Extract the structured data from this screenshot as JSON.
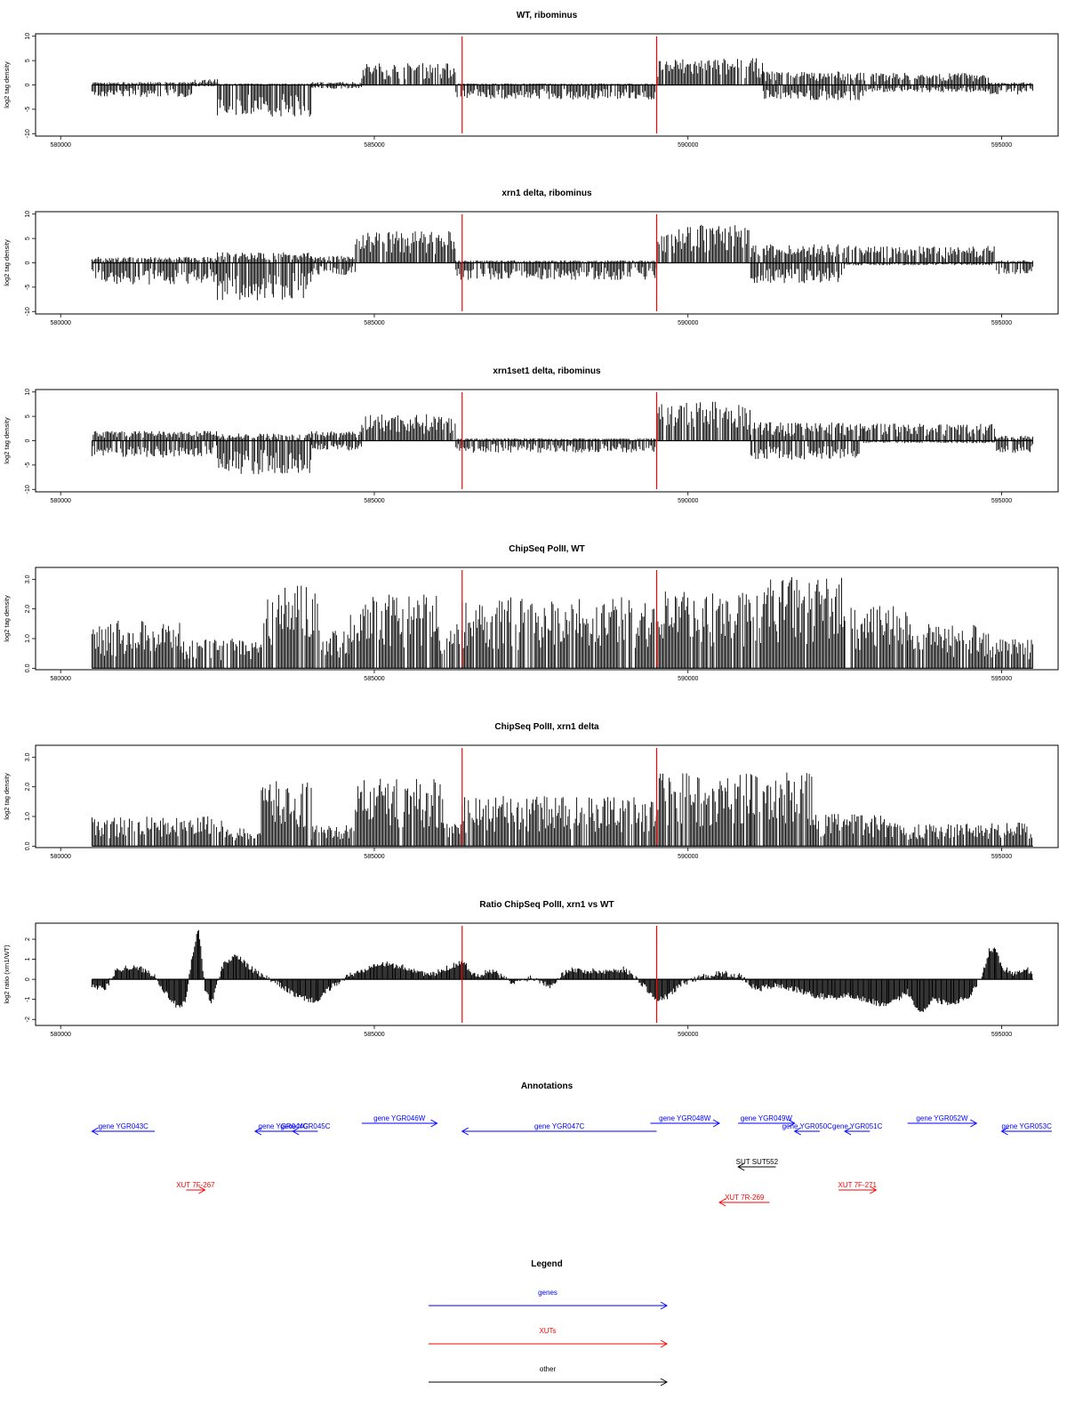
{
  "colors": {
    "signal": "#000000",
    "marker": "#ff0000",
    "gene": "#0000ff",
    "xut": "#ff0000",
    "other": "#000000"
  },
  "chart_data": [
    {
      "id": "wt_ribominus",
      "type": "bar",
      "title": "WT, ribominus",
      "ylabel": "log2 tag density",
      "xlim": [
        579600,
        595900
      ],
      "ylim": [
        -10.5,
        10.5
      ],
      "yticks": [
        10,
        5,
        0,
        -5,
        -10
      ],
      "xticks": [
        580000,
        585000,
        590000,
        595000
      ],
      "markers": [
        586400,
        589500
      ],
      "segments": [
        {
          "from": 580500,
          "to": 582100,
          "pos": 0.6,
          "neg": 2.5
        },
        {
          "from": 582100,
          "to": 582500,
          "pos": 1.2,
          "neg": 0.3
        },
        {
          "from": 582500,
          "to": 584000,
          "pos": 0.3,
          "neg": 6.5
        },
        {
          "from": 584000,
          "to": 584800,
          "pos": 0.6,
          "neg": 0.8
        },
        {
          "from": 584800,
          "to": 586300,
          "pos": 4.5,
          "neg": 0
        },
        {
          "from": 586300,
          "to": 589500,
          "pos": 0.3,
          "neg": 3.0
        },
        {
          "from": 589500,
          "to": 591200,
          "pos": 5.5,
          "neg": 0
        },
        {
          "from": 591200,
          "to": 592800,
          "pos": 2.8,
          "neg": 3.2
        },
        {
          "from": 592800,
          "to": 594800,
          "pos": 2.5,
          "neg": 1.5
        },
        {
          "from": 594800,
          "to": 595500,
          "pos": 0.5,
          "neg": 2.0
        }
      ]
    },
    {
      "id": "xrn1_ribominus",
      "type": "bar",
      "title": "xrn1 delta, ribominus",
      "ylabel": "log2 tag density",
      "xlim": [
        579600,
        595900
      ],
      "ylim": [
        -10.5,
        10.5
      ],
      "yticks": [
        10,
        5,
        0,
        -5,
        -10
      ],
      "xticks": [
        580000,
        585000,
        590000,
        595000
      ],
      "markers": [
        586400,
        589500
      ],
      "segments": [
        {
          "from": 580500,
          "to": 582500,
          "pos": 1.2,
          "neg": 4.5
        },
        {
          "from": 582500,
          "to": 584000,
          "pos": 2.2,
          "neg": 7.8
        },
        {
          "from": 584000,
          "to": 584700,
          "pos": 1.5,
          "neg": 2.5
        },
        {
          "from": 584700,
          "to": 586300,
          "pos": 6.5,
          "neg": 0
        },
        {
          "from": 586300,
          "to": 589500,
          "pos": 0.5,
          "neg": 3.5
        },
        {
          "from": 589500,
          "to": 591000,
          "pos": 8.0,
          "neg": 0
        },
        {
          "from": 591000,
          "to": 592500,
          "pos": 3.8,
          "neg": 4.2
        },
        {
          "from": 592500,
          "to": 594900,
          "pos": 3.5,
          "neg": 0.5
        },
        {
          "from": 594900,
          "to": 595500,
          "pos": 0.5,
          "neg": 2.5
        }
      ]
    },
    {
      "id": "xrn1set1_ribominus",
      "type": "bar",
      "title": "xrn1set1 delta, ribominus",
      "ylabel": "log2 tag density",
      "xlim": [
        579600,
        595900
      ],
      "ylim": [
        -10.5,
        10.5
      ],
      "yticks": [
        10,
        5,
        0,
        -5,
        -10
      ],
      "xticks": [
        580000,
        585000,
        590000,
        595000
      ],
      "markers": [
        586400,
        589500
      ],
      "segments": [
        {
          "from": 580500,
          "to": 582500,
          "pos": 2.0,
          "neg": 3.5
        },
        {
          "from": 582500,
          "to": 584000,
          "pos": 1.5,
          "neg": 7.0
        },
        {
          "from": 584000,
          "to": 584800,
          "pos": 2.0,
          "neg": 2.0
        },
        {
          "from": 584800,
          "to": 586300,
          "pos": 5.5,
          "neg": 0
        },
        {
          "from": 586300,
          "to": 589500,
          "pos": 0.5,
          "neg": 2.5
        },
        {
          "from": 589500,
          "to": 591000,
          "pos": 8.0,
          "neg": 0
        },
        {
          "from": 591000,
          "to": 592800,
          "pos": 3.8,
          "neg": 4.0
        },
        {
          "from": 592800,
          "to": 594900,
          "pos": 3.5,
          "neg": 0.5
        },
        {
          "from": 594900,
          "to": 595500,
          "pos": 1.0,
          "neg": 2.5
        }
      ]
    },
    {
      "id": "chipseq_wt",
      "type": "bar",
      "title": "ChipSeq PolII, WT",
      "ylabel": "log2 tag density",
      "xlim": [
        579600,
        595900
      ],
      "ylim": [
        -0.05,
        3.4
      ],
      "yticks": [
        0.0,
        1.0,
        2.0,
        3.0
      ],
      "xticks": [
        580000,
        585000,
        590000,
        595000
      ],
      "markers": [
        586400,
        589500
      ],
      "segments": [
        {
          "from": 580500,
          "to": 581500,
          "pos": 1.6,
          "neg": 0
        },
        {
          "from": 581500,
          "to": 581900,
          "pos": 1.6,
          "neg": 0
        },
        {
          "from": 581900,
          "to": 583200,
          "pos": 1.0,
          "neg": 0
        },
        {
          "from": 583200,
          "to": 584100,
          "pos": 2.8,
          "neg": 0
        },
        {
          "from": 584100,
          "to": 584600,
          "pos": 1.4,
          "neg": 0
        },
        {
          "from": 584600,
          "to": 586000,
          "pos": 2.5,
          "neg": 0
        },
        {
          "from": 586000,
          "to": 586400,
          "pos": 1.5,
          "neg": 0
        },
        {
          "from": 586400,
          "to": 589500,
          "pos": 2.4,
          "neg": 0
        },
        {
          "from": 589500,
          "to": 591000,
          "pos": 2.6,
          "neg": 0
        },
        {
          "from": 591000,
          "to": 592500,
          "pos": 3.1,
          "neg": 0
        },
        {
          "from": 592500,
          "to": 593500,
          "pos": 2.1,
          "neg": 0
        },
        {
          "from": 593500,
          "to": 594800,
          "pos": 1.5,
          "neg": 0
        },
        {
          "from": 594800,
          "to": 595500,
          "pos": 1.0,
          "neg": 0
        }
      ]
    },
    {
      "id": "chipseq_xrn1",
      "type": "bar",
      "title": "ChipSeq PolII, xrn1 delta",
      "ylabel": "log2 tag density",
      "xlim": [
        579600,
        595900
      ],
      "ylim": [
        -0.05,
        3.4
      ],
      "yticks": [
        0.0,
        1.0,
        2.0,
        3.0
      ],
      "xticks": [
        580000,
        585000,
        590000,
        595000
      ],
      "markers": [
        586400,
        589500
      ],
      "segments": [
        {
          "from": 580500,
          "to": 582600,
          "pos": 1.0,
          "neg": 0
        },
        {
          "from": 582600,
          "to": 583200,
          "pos": 0.6,
          "neg": 0
        },
        {
          "from": 583200,
          "to": 584000,
          "pos": 2.2,
          "neg": 0
        },
        {
          "from": 584000,
          "to": 584700,
          "pos": 0.7,
          "neg": 0
        },
        {
          "from": 584700,
          "to": 586100,
          "pos": 2.3,
          "neg": 0
        },
        {
          "from": 586100,
          "to": 586400,
          "pos": 0.8,
          "neg": 0
        },
        {
          "from": 586400,
          "to": 589500,
          "pos": 1.7,
          "neg": 0
        },
        {
          "from": 589500,
          "to": 591000,
          "pos": 2.5,
          "neg": 0
        },
        {
          "from": 591000,
          "to": 592000,
          "pos": 2.5,
          "neg": 0
        },
        {
          "from": 592000,
          "to": 593200,
          "pos": 1.1,
          "neg": 0
        },
        {
          "from": 593200,
          "to": 595500,
          "pos": 0.8,
          "neg": 0
        }
      ]
    },
    {
      "id": "ratio_chipseq",
      "type": "area",
      "title": "Ratio ChipSeq PolII, xrn1 vs WT",
      "ylabel": "log2 ratio (xrn1/WT)",
      "xlim": [
        579600,
        595900
      ],
      "ylim": [
        -2.3,
        2.8
      ],
      "yticks": [
        2,
        1,
        0,
        -1,
        -2
      ],
      "xticks": [
        580000,
        585000,
        590000,
        595000
      ],
      "markers": [
        586400,
        589500
      ],
      "profile": [
        [
          580500,
          -0.3
        ],
        [
          580700,
          -0.5
        ],
        [
          580900,
          0.5
        ],
        [
          581100,
          0.6
        ],
        [
          581300,
          0.5
        ],
        [
          581500,
          0.2
        ],
        [
          581700,
          -0.8
        ],
        [
          581900,
          -1.5
        ],
        [
          582000,
          -1.0
        ],
        [
          582100,
          1.2
        ],
        [
          582200,
          2.6
        ],
        [
          582300,
          -0.5
        ],
        [
          582400,
          -1.2
        ],
        [
          582600,
          0.8
        ],
        [
          582800,
          1.2
        ],
        [
          583000,
          0.6
        ],
        [
          583200,
          0.2
        ],
        [
          583500,
          -0.3
        ],
        [
          583800,
          -0.9
        ],
        [
          584100,
          -1.1
        ],
        [
          584300,
          -0.4
        ],
        [
          584600,
          0.2
        ],
        [
          584800,
          0.4
        ],
        [
          585000,
          0.8
        ],
        [
          585300,
          0.7
        ],
        [
          585600,
          0.5
        ],
        [
          585900,
          0.2
        ],
        [
          586200,
          0.6
        ],
        [
          586400,
          0.9
        ],
        [
          586600,
          0.2
        ],
        [
          586900,
          0.4
        ],
        [
          587200,
          -0.2
        ],
        [
          587500,
          0.1
        ],
        [
          587800,
          -0.3
        ],
        [
          588100,
          0.5
        ],
        [
          588400,
          0.4
        ],
        [
          588700,
          0.4
        ],
        [
          589000,
          0.5
        ],
        [
          589300,
          -0.3
        ],
        [
          589500,
          -1.1
        ],
        [
          589700,
          -0.8
        ],
        [
          589900,
          -0.2
        ],
        [
          590200,
          0.1
        ],
        [
          590500,
          0.3
        ],
        [
          590800,
          0.2
        ],
        [
          591100,
          -0.5
        ],
        [
          591400,
          -0.3
        ],
        [
          591700,
          -0.5
        ],
        [
          592000,
          -0.8
        ],
        [
          592300,
          -0.9
        ],
        [
          592600,
          -0.8
        ],
        [
          592900,
          -1.1
        ],
        [
          593200,
          -1.3
        ],
        [
          593500,
          -0.6
        ],
        [
          593700,
          -1.7
        ],
        [
          593900,
          -1.0
        ],
        [
          594200,
          -1.2
        ],
        [
          594500,
          -0.8
        ],
        [
          594700,
          0.3
        ],
        [
          594800,
          1.4
        ],
        [
          594900,
          1.6
        ],
        [
          595000,
          0.6
        ],
        [
          595200,
          0.3
        ],
        [
          595400,
          0.5
        ],
        [
          595500,
          0.3
        ]
      ]
    }
  ],
  "annotations": {
    "title": "Annotations",
    "features": [
      {
        "label": "gene YGR043C",
        "kind": "gene",
        "start": 580500,
        "end": 581500,
        "dir": "left",
        "row": 1
      },
      {
        "label": "gene YGR044C",
        "kind": "gene",
        "start": 583100,
        "end": 584000,
        "dir": "left",
        "row": 1
      },
      {
        "label": "gene YGR045C",
        "kind": "gene",
        "start": 583700,
        "end": 584100,
        "dir": "left",
        "row": 1
      },
      {
        "label": "gene YGR046W",
        "kind": "gene",
        "start": 584800,
        "end": 586000,
        "dir": "right",
        "row": 0
      },
      {
        "label": "gene YGR047C",
        "kind": "gene",
        "start": 586400,
        "end": 589500,
        "dir": "left",
        "row": 1
      },
      {
        "label": "gene YGR048W",
        "kind": "gene",
        "start": 589400,
        "end": 590500,
        "dir": "right",
        "row": 0
      },
      {
        "label": "gene YGR049W",
        "kind": "gene",
        "start": 590800,
        "end": 591700,
        "dir": "right",
        "row": 0
      },
      {
        "label": "gene YGR050C",
        "kind": "gene",
        "start": 591700,
        "end": 592100,
        "dir": "left",
        "row": 1
      },
      {
        "label": "gene YGR051C",
        "kind": "gene",
        "start": 592500,
        "end": 592900,
        "dir": "left",
        "row": 1
      },
      {
        "label": "gene YGR052W",
        "kind": "gene",
        "start": 593500,
        "end": 594600,
        "dir": "right",
        "row": 0
      },
      {
        "label": "gene YGR053C",
        "kind": "gene",
        "start": 595000,
        "end": 595800,
        "dir": "left",
        "row": 1
      },
      {
        "label": "SUT SUT552",
        "kind": "other",
        "start": 590800,
        "end": 591400,
        "dir": "left",
        "row": 2
      },
      {
        "label": "XUT 7F-267",
        "kind": "xut",
        "start": 582000,
        "end": 582300,
        "dir": "right",
        "row": 3
      },
      {
        "label": "XUT 7R-269",
        "kind": "xut",
        "start": 590500,
        "end": 591300,
        "dir": "left",
        "row": 4
      },
      {
        "label": "XUT 7F-271",
        "kind": "xut",
        "start": 592400,
        "end": 593000,
        "dir": "right",
        "row": 3
      }
    ]
  },
  "legend": {
    "title": "Legend",
    "entries": [
      {
        "label": "genes",
        "kind": "gene"
      },
      {
        "label": "XUTs",
        "kind": "xut"
      },
      {
        "label": "other",
        "kind": "other"
      }
    ]
  }
}
